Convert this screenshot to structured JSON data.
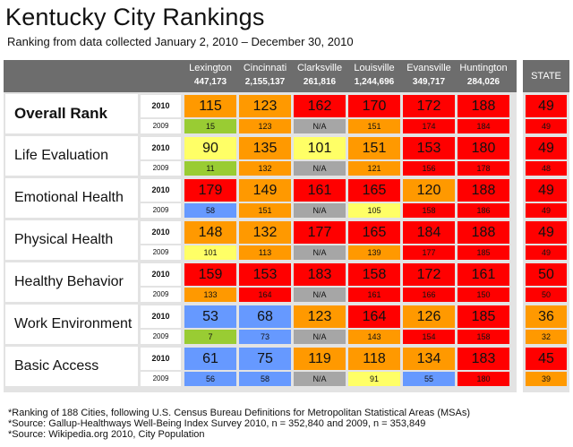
{
  "header": {
    "title": "Kentucky City Rankings",
    "subtitle": "Ranking from data collected January 2, 2010 – December 30, 2010",
    "state_label": "STATE"
  },
  "years": {
    "current": "2010",
    "previous": "2009"
  },
  "colors": {
    "red": "#ff0000",
    "orange": "#ff9900",
    "yellow": "#ffff66",
    "gray": "#a6a6a6",
    "blue": "#6699ff",
    "green": "#99cc33",
    "header": "#6d6d6d",
    "panel": "#e3e3e3"
  },
  "chart_data": {
    "type": "table",
    "title": "Kentucky City Rankings",
    "cities": [
      {
        "name": "Lexington",
        "population": "447,173"
      },
      {
        "name": "Cincinnati",
        "population": "2,155,137"
      },
      {
        "name": "Clarksville",
        "population": "261,816"
      },
      {
        "name": "Louisville",
        "population": "1,244,696"
      },
      {
        "name": "Evansville",
        "population": "349,717"
      },
      {
        "name": "Huntington",
        "population": "284,026"
      }
    ],
    "categories": [
      {
        "name": "Overall Rank",
        "bold": true,
        "values_2010": [
          {
            "v": "115",
            "c": "orange"
          },
          {
            "v": "123",
            "c": "orange"
          },
          {
            "v": "162",
            "c": "red"
          },
          {
            "v": "170",
            "c": "red"
          },
          {
            "v": "172",
            "c": "red"
          },
          {
            "v": "188",
            "c": "red"
          }
        ],
        "values_2009": [
          {
            "v": "15",
            "c": "green"
          },
          {
            "v": "123",
            "c": "orange"
          },
          {
            "v": "N/A",
            "c": "gray"
          },
          {
            "v": "151",
            "c": "orange"
          },
          {
            "v": "174",
            "c": "red"
          },
          {
            "v": "184",
            "c": "red"
          }
        ],
        "state_2010": {
          "v": "49",
          "c": "red"
        },
        "state_2009": {
          "v": "49",
          "c": "red"
        }
      },
      {
        "name": "Life Evaluation",
        "bold": false,
        "values_2010": [
          {
            "v": "90",
            "c": "yellow"
          },
          {
            "v": "135",
            "c": "orange"
          },
          {
            "v": "101",
            "c": "yellow"
          },
          {
            "v": "151",
            "c": "orange"
          },
          {
            "v": "153",
            "c": "red"
          },
          {
            "v": "180",
            "c": "red"
          }
        ],
        "values_2009": [
          {
            "v": "11",
            "c": "green"
          },
          {
            "v": "132",
            "c": "orange"
          },
          {
            "v": "N/A",
            "c": "gray"
          },
          {
            "v": "121",
            "c": "orange"
          },
          {
            "v": "156",
            "c": "red"
          },
          {
            "v": "178",
            "c": "red"
          }
        ],
        "state_2010": {
          "v": "49",
          "c": "red"
        },
        "state_2009": {
          "v": "48",
          "c": "red"
        }
      },
      {
        "name": "Emotional Health",
        "bold": false,
        "values_2010": [
          {
            "v": "179",
            "c": "red"
          },
          {
            "v": "149",
            "c": "orange"
          },
          {
            "v": "161",
            "c": "red"
          },
          {
            "v": "165",
            "c": "red"
          },
          {
            "v": "120",
            "c": "orange"
          },
          {
            "v": "188",
            "c": "red"
          }
        ],
        "values_2009": [
          {
            "v": "58",
            "c": "blue"
          },
          {
            "v": "151",
            "c": "orange"
          },
          {
            "v": "N/A",
            "c": "gray"
          },
          {
            "v": "105",
            "c": "yellow"
          },
          {
            "v": "158",
            "c": "red"
          },
          {
            "v": "186",
            "c": "red"
          }
        ],
        "state_2010": {
          "v": "49",
          "c": "red"
        },
        "state_2009": {
          "v": "49",
          "c": "red"
        }
      },
      {
        "name": "Physical Health",
        "bold": false,
        "values_2010": [
          {
            "v": "148",
            "c": "orange"
          },
          {
            "v": "132",
            "c": "orange"
          },
          {
            "v": "177",
            "c": "red"
          },
          {
            "v": "165",
            "c": "red"
          },
          {
            "v": "184",
            "c": "red"
          },
          {
            "v": "188",
            "c": "red"
          }
        ],
        "values_2009": [
          {
            "v": "101",
            "c": "yellow"
          },
          {
            "v": "113",
            "c": "orange"
          },
          {
            "v": "N/A",
            "c": "gray"
          },
          {
            "v": "139",
            "c": "orange"
          },
          {
            "v": "177",
            "c": "red"
          },
          {
            "v": "185",
            "c": "red"
          }
        ],
        "state_2010": {
          "v": "49",
          "c": "red"
        },
        "state_2009": {
          "v": "49",
          "c": "red"
        }
      },
      {
        "name": "Healthy Behavior",
        "bold": false,
        "values_2010": [
          {
            "v": "159",
            "c": "red"
          },
          {
            "v": "153",
            "c": "red"
          },
          {
            "v": "183",
            "c": "red"
          },
          {
            "v": "158",
            "c": "red"
          },
          {
            "v": "172",
            "c": "red"
          },
          {
            "v": "161",
            "c": "red"
          }
        ],
        "values_2009": [
          {
            "v": "133",
            "c": "orange"
          },
          {
            "v": "164",
            "c": "red"
          },
          {
            "v": "N/A",
            "c": "gray"
          },
          {
            "v": "161",
            "c": "red"
          },
          {
            "v": "166",
            "c": "red"
          },
          {
            "v": "150",
            "c": "red"
          }
        ],
        "state_2010": {
          "v": "50",
          "c": "red"
        },
        "state_2009": {
          "v": "50",
          "c": "red"
        }
      },
      {
        "name": "Work Environment",
        "bold": false,
        "values_2010": [
          {
            "v": "53",
            "c": "blue"
          },
          {
            "v": "68",
            "c": "blue"
          },
          {
            "v": "123",
            "c": "orange"
          },
          {
            "v": "164",
            "c": "red"
          },
          {
            "v": "126",
            "c": "orange"
          },
          {
            "v": "185",
            "c": "red"
          }
        ],
        "values_2009": [
          {
            "v": "7",
            "c": "green"
          },
          {
            "v": "73",
            "c": "blue"
          },
          {
            "v": "N/A",
            "c": "gray"
          },
          {
            "v": "143",
            "c": "orange"
          },
          {
            "v": "154",
            "c": "red"
          },
          {
            "v": "158",
            "c": "red"
          }
        ],
        "state_2010": {
          "v": "36",
          "c": "orange"
        },
        "state_2009": {
          "v": "32",
          "c": "orange"
        }
      },
      {
        "name": "Basic Access",
        "bold": false,
        "values_2010": [
          {
            "v": "61",
            "c": "blue"
          },
          {
            "v": "75",
            "c": "blue"
          },
          {
            "v": "119",
            "c": "orange"
          },
          {
            "v": "118",
            "c": "orange"
          },
          {
            "v": "134",
            "c": "orange"
          },
          {
            "v": "183",
            "c": "red"
          }
        ],
        "values_2009": [
          {
            "v": "56",
            "c": "blue"
          },
          {
            "v": "58",
            "c": "blue"
          },
          {
            "v": "N/A",
            "c": "gray"
          },
          {
            "v": "91",
            "c": "yellow"
          },
          {
            "v": "55",
            "c": "blue"
          },
          {
            "v": "180",
            "c": "red"
          }
        ],
        "state_2010": {
          "v": "45",
          "c": "red"
        },
        "state_2009": {
          "v": "39",
          "c": "orange"
        }
      }
    ]
  },
  "footnotes": [
    "*Ranking of 188 Cities, following U.S. Census Bureau Definitions for Metropolitan Statistical Areas (MSAs)",
    "*Source:  Gallup-Healthways Well-Being Index Survey 2010, n = 352,840 and 2009, n = 353,849",
    "*Source:  Wikipedia.org 2010, City Population"
  ]
}
